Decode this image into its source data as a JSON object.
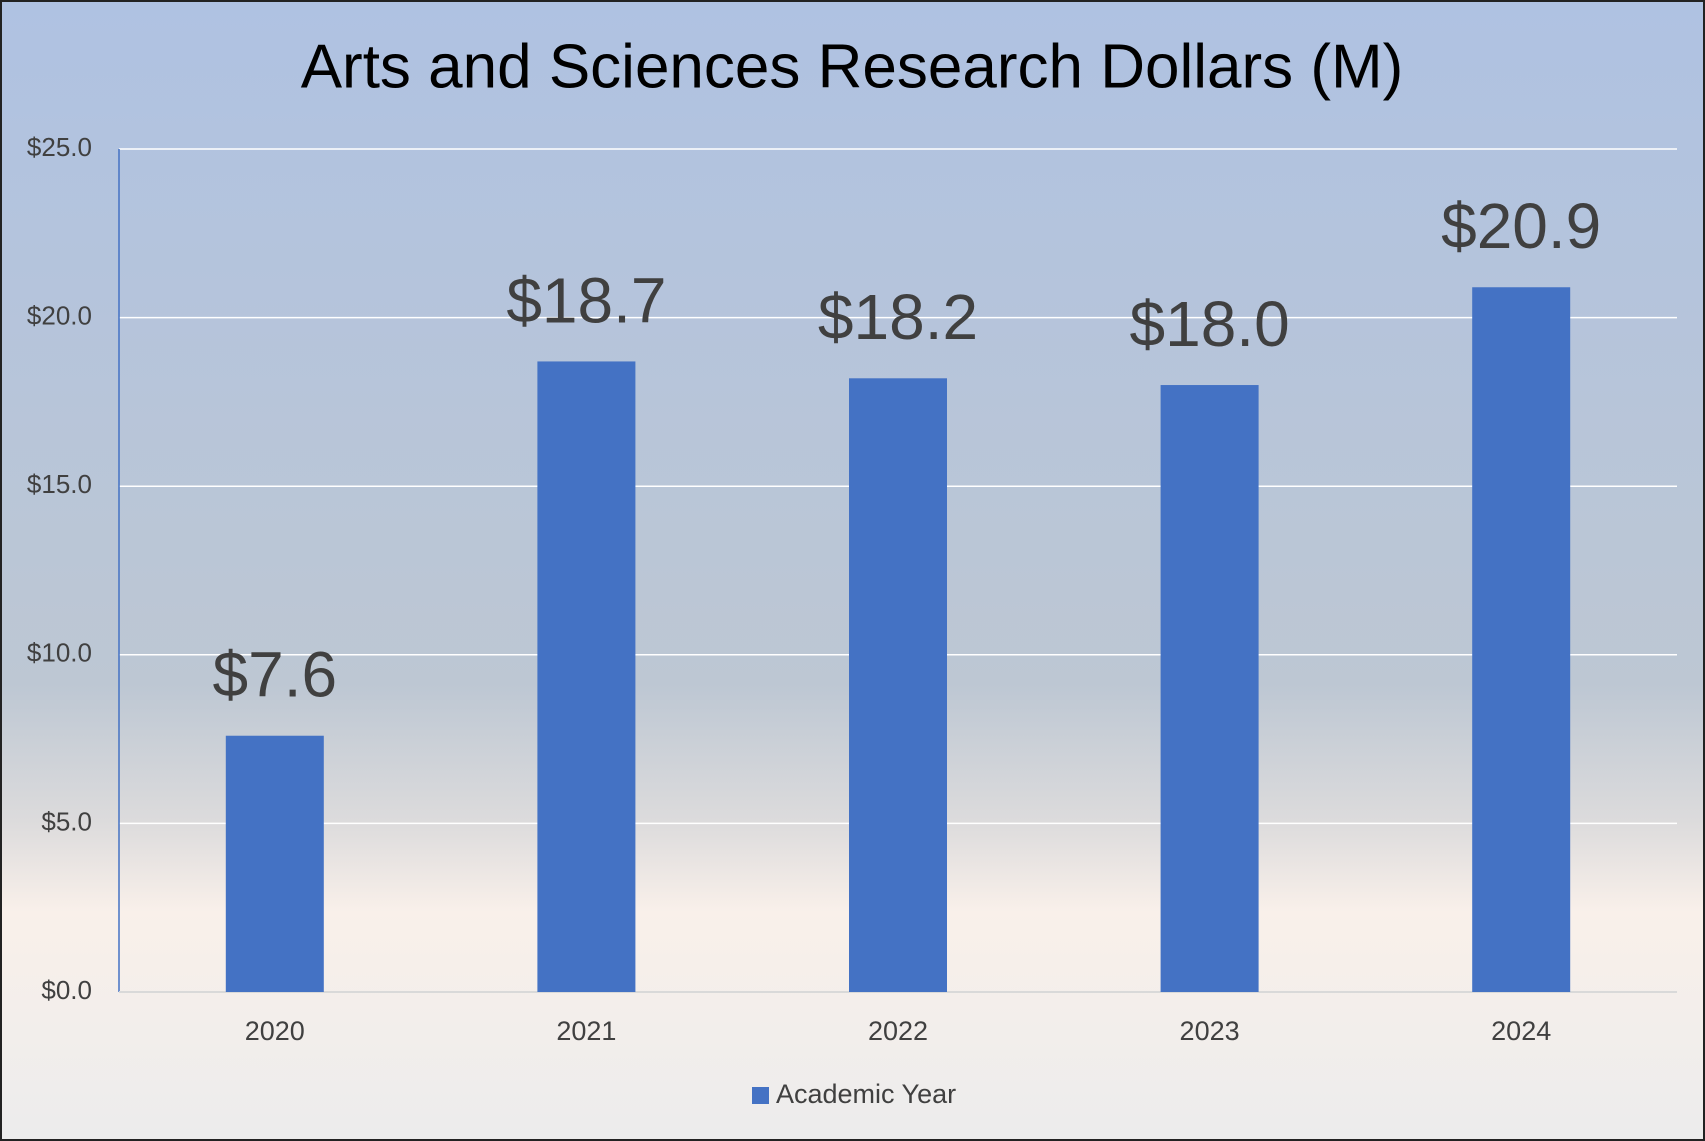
{
  "chart_data": {
    "type": "bar",
    "title": "Arts and Sciences Research Dollars (M)",
    "categories": [
      "2020",
      "2021",
      "2022",
      "2023",
      "2024"
    ],
    "series": [
      {
        "name": "Academic Year",
        "color": "#4472c4",
        "values": [
          7.6,
          18.7,
          18.2,
          18.0,
          20.9
        ],
        "value_labels": [
          "$7.6",
          "$18.7",
          "$18.2",
          "$18.0",
          "$20.9"
        ]
      }
    ],
    "ylim": [
      0,
      25
    ],
    "yticks": [
      {
        "value": 0,
        "label": "$0.0"
      },
      {
        "value": 5,
        "label": "$5.0"
      },
      {
        "value": 10,
        "label": "$10.0"
      },
      {
        "value": 15,
        "label": "$15.0"
      },
      {
        "value": 20,
        "label": "$20.0"
      },
      {
        "value": 25,
        "label": "$25.0"
      }
    ],
    "grid": true,
    "legend": "bottom"
  }
}
